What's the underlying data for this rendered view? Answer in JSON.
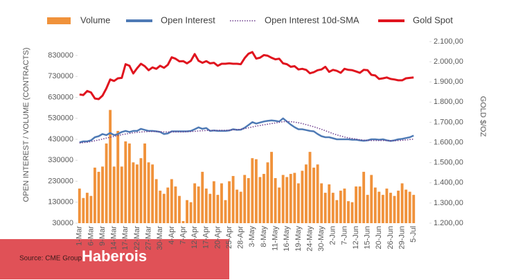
{
  "chart_data": {
    "type": "combo",
    "y_label": "OPEN INTEREST / VOLUME (CONTRACTS)",
    "y2_label": "GOLD $/OZ",
    "source": "Source: CME Group",
    "watermark": "Haberois",
    "legend": "top",
    "categories": [
      "1-Mar",
      null,
      null,
      "6-Mar",
      null,
      null,
      "9-Mar",
      null,
      null,
      "14-Mar",
      null,
      null,
      "17-Mar",
      null,
      null,
      "22-Mar",
      null,
      null,
      "27-Mar",
      null,
      null,
      "30-Mar",
      null,
      null,
      "4-Apr",
      null,
      null,
      "7-Apr",
      null,
      null,
      "12-Apr",
      null,
      null,
      "17-Apr",
      null,
      null,
      "20-Apr",
      null,
      null,
      "25-Apr",
      null,
      null,
      "28-Apr",
      null,
      null,
      "3-May",
      null,
      null,
      "8-May",
      null,
      null,
      "11-May",
      null,
      null,
      "16-May",
      null,
      null,
      "19-May",
      null,
      null,
      "24-May",
      null,
      null,
      "30-May",
      null,
      null,
      "2-Jun",
      null,
      null,
      "7-Jun",
      null,
      null,
      "12-Jun",
      null,
      null,
      "15-Jun",
      null,
      null,
      "20-Jun",
      null,
      null,
      "26-Jun",
      null,
      null,
      "29-Jun",
      null,
      null,
      "5-Jul"
    ],
    "ylim": [
      30000,
      830000
    ],
    "yticks": [
      30000,
      130000,
      230000,
      330000,
      430000,
      530000,
      630000,
      730000,
      830000
    ],
    "y2lim": [
      1200,
      2100
    ],
    "y2ticks": [
      {
        "value": 1200,
        "label": "1.200,00"
      },
      {
        "value": 1300,
        "label": "1.300,00"
      },
      {
        "value": 1400,
        "label": "1.400,00"
      },
      {
        "value": 1500,
        "label": "1.500,00"
      },
      {
        "value": 1600,
        "label": "1.600,00"
      },
      {
        "value": 1700,
        "label": "1.700,00"
      },
      {
        "value": 1800,
        "label": "1.800,00"
      },
      {
        "value": 1900,
        "label": "1.900,00"
      },
      {
        "value": 2000,
        "label": "2.000,00"
      },
      {
        "value": 2100,
        "label": "2.100,00"
      }
    ],
    "series": [
      {
        "name": "Volume",
        "type": "bar",
        "color": "#f0923b",
        "values": [
          195000,
          150000,
          175000,
          160000,
          295000,
          275000,
          300000,
          410000,
          570000,
          300000,
          470000,
          300000,
          420000,
          410000,
          320000,
          310000,
          340000,
          410000,
          320000,
          310000,
          240000,
          185000,
          170000,
          200000,
          240000,
          205000,
          160000,
          40000,
          140000,
          130000,
          220000,
          205000,
          275000,
          195000,
          170000,
          230000,
          165000,
          220000,
          140000,
          230000,
          255000,
          190000,
          180000,
          260000,
          245000,
          340000,
          335000,
          250000,
          265000,
          320000,
          370000,
          245000,
          200000,
          260000,
          250000,
          265000,
          270000,
          220000,
          280000,
          310000,
          370000,
          295000,
          310000,
          220000,
          175000,
          215000,
          175000,
          140000,
          185000,
          195000,
          135000,
          130000,
          205000,
          205000,
          275000,
          165000,
          260000,
          200000,
          180000,
          165000,
          195000,
          175000,
          160000,
          185000,
          220000,
          190000,
          180000,
          165000
        ]
      },
      {
        "name": "Open Interest",
        "type": "line",
        "color": "#4e7ab5",
        "values": [
          415000,
          420000,
          420000,
          425000,
          440000,
          445000,
          455000,
          450000,
          460000,
          450000,
          455000,
          465000,
          470000,
          465000,
          470000,
          470000,
          480000,
          475000,
          470000,
          470000,
          468000,
          465000,
          455000,
          458000,
          468000,
          468000,
          468000,
          468000,
          468000,
          470000,
          478000,
          487000,
          480000,
          484000,
          470000,
          472000,
          470000,
          470000,
          470000,
          472000,
          478000,
          475000,
          476000,
          485000,
          498000,
          512000,
          505000,
          510000,
          515000,
          518000,
          520000,
          518000,
          515000,
          530000,
          515000,
          500000,
          488000,
          478000,
          478000,
          474000,
          470000,
          468000,
          455000,
          445000,
          440000,
          440000,
          435000,
          430000,
          430000,
          430000,
          430000,
          428000,
          428000,
          425000,
          423000,
          425000,
          430000,
          430000,
          428000,
          430000,
          425000,
          422000,
          425000,
          430000,
          432000,
          436000,
          440000,
          448000
        ]
      },
      {
        "name": "Open Interest 10d-SMA",
        "type": "line",
        "dash": "dotted",
        "color": "#6b3a8c",
        "values": [
          412000,
          414000,
          416000,
          419000,
          423000,
          427000,
          431000,
          436000,
          440000,
          444000,
          448000,
          452000,
          455000,
          458000,
          461000,
          463000,
          465000,
          466000,
          467000,
          467000,
          467000,
          466000,
          465000,
          465000,
          465000,
          465000,
          465000,
          465000,
          466000,
          467000,
          468000,
          470000,
          471000,
          472000,
          472000,
          472000,
          473000,
          473000,
          473000,
          474000,
          475000,
          476000,
          478000,
          481000,
          485000,
          489000,
          493000,
          496000,
          499000,
          502000,
          505000,
          508000,
          511000,
          514000,
          515000,
          514000,
          512000,
          509000,
          505000,
          500000,
          495000,
          490000,
          484000,
          478000,
          471000,
          464000,
          457000,
          451000,
          446000,
          441000,
          437000,
          434000,
          431000,
          428000,
          426000,
          425000,
          424000,
          424000,
          424000,
          424000,
          424000,
          423000,
          423000,
          424000,
          425000,
          427000,
          429000,
          431000
        ]
      },
      {
        "name": "Gold Spot",
        "type": "line",
        "axis": "y2",
        "color": "#e0141e",
        "values": [
          1838,
          1835,
          1855,
          1848,
          1818,
          1815,
          1832,
          1868,
          1912,
          1905,
          1918,
          1920,
          1988,
          1980,
          1942,
          1968,
          1990,
          1978,
          1958,
          1972,
          1965,
          1980,
          1970,
          1985,
          2022,
          2015,
          2002,
          2003,
          1992,
          2005,
          2038,
          2005,
          1995,
          2003,
          1992,
          1995,
          1980,
          1990,
          1990,
          1992,
          1990,
          1990,
          1988,
          2018,
          2040,
          2048,
          2016,
          2020,
          2033,
          2030,
          2020,
          2012,
          2015,
          1992,
          1988,
          1975,
          1978,
          1962,
          1965,
          1960,
          1943,
          1948,
          1958,
          1962,
          1975,
          1950,
          1960,
          1955,
          1945,
          1965,
          1960,
          1958,
          1952,
          1945,
          1960,
          1958,
          1935,
          1932,
          1915,
          1918,
          1922,
          1915,
          1912,
          1908,
          1908,
          1918,
          1920,
          1922
        ]
      }
    ]
  }
}
